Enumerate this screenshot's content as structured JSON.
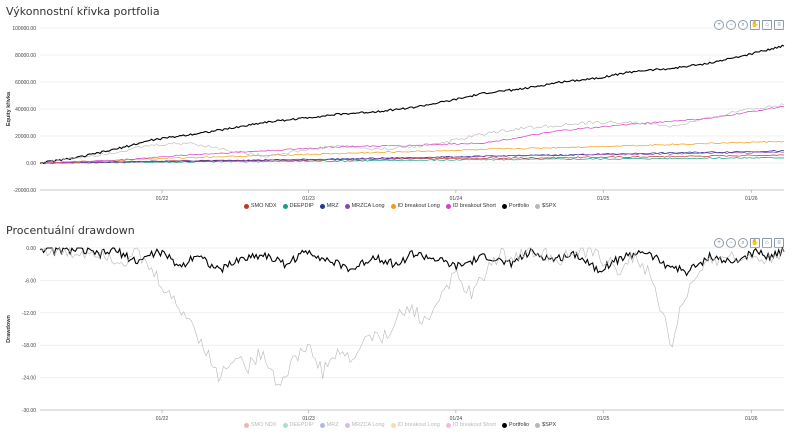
{
  "charts": [
    {
      "title": "Výkonnostní křivka portfolia",
      "toolbar": [
        "zoom-in-icon",
        "zoom-out-icon",
        "magnify-icon",
        "pan-icon",
        "home-icon",
        "menu-icon"
      ]
    },
    {
      "title": "Procentuální drawdown",
      "toolbar": [
        "zoom-in-icon",
        "zoom-out-icon",
        "magnify-icon",
        "pan-icon",
        "home-icon",
        "menu-icon"
      ]
    }
  ],
  "chart_data": [
    {
      "type": "line",
      "title": "Výkonnostní křivka portfolia",
      "ylabel": "Equity křivka",
      "xlabel": "",
      "ylim": [
        -20000,
        100000
      ],
      "y_ticks": [
        "100000.00",
        "80000.00",
        "60000.00",
        "40000.00",
        "20000.00",
        "0.00",
        "-20000.00"
      ],
      "y_tick_values": [
        100000,
        80000,
        60000,
        40000,
        20000,
        0,
        -20000
      ],
      "x_ticks": [
        "01/22",
        "01/23",
        "01/24",
        "01/25",
        "01/26"
      ],
      "x_tick_pos": [
        0.164,
        0.361,
        0.559,
        0.757,
        0.956
      ],
      "legend_position": "bottom",
      "grid": true,
      "series": [
        {
          "name": "SMO NDX",
          "color": "#c0392b",
          "points": [
            [
              0,
              0
            ],
            [
              0.2,
              1500
            ],
            [
              0.4,
              2500
            ],
            [
              0.6,
              3500
            ],
            [
              0.8,
              4500
            ],
            [
              1,
              6000
            ]
          ]
        },
        {
          "name": "DEEPDIP",
          "color": "#16a085",
          "points": [
            [
              0,
              0
            ],
            [
              0.2,
              800
            ],
            [
              0.4,
              1500
            ],
            [
              0.6,
              2500
            ],
            [
              0.8,
              3200
            ],
            [
              1,
              4000
            ]
          ]
        },
        {
          "name": "MRZ",
          "color": "#1f3a93",
          "points": [
            [
              0,
              0
            ],
            [
              0.2,
              1500
            ],
            [
              0.4,
              3000
            ],
            [
              0.6,
              5000
            ],
            [
              0.8,
              7000
            ],
            [
              1,
              9000
            ]
          ]
        },
        {
          "name": "MRZCA Long",
          "color": "#8e44ad",
          "points": [
            [
              0,
              0
            ],
            [
              0.2,
              1500
            ],
            [
              0.4,
              2500
            ],
            [
              0.6,
              5000
            ],
            [
              0.8,
              6500
            ],
            [
              1,
              8000
            ]
          ]
        },
        {
          "name": "ID breakout Long",
          "color": "#f39c12",
          "points": [
            [
              0,
              0
            ],
            [
              0.2,
              4000
            ],
            [
              0.4,
              7000
            ],
            [
              0.6,
              10000
            ],
            [
              0.8,
              13000
            ],
            [
              1,
              16000
            ]
          ]
        },
        {
          "name": "ID breakout Short",
          "color": "#d63fc8",
          "points": [
            [
              0,
              0
            ],
            [
              0.1,
              2000
            ],
            [
              0.2,
              6000
            ],
            [
              0.3,
              9000
            ],
            [
              0.4,
              12000
            ],
            [
              0.5,
              13000
            ],
            [
              0.6,
              15000
            ],
            [
              0.7,
              24000
            ],
            [
              0.8,
              29000
            ],
            [
              0.9,
              33000
            ],
            [
              1,
              42000
            ]
          ]
        },
        {
          "name": "Portfolio",
          "color": "#000000",
          "points": [
            [
              0,
              0
            ],
            [
              0.05,
              4000
            ],
            [
              0.1,
              10000
            ],
            [
              0.15,
              17000
            ],
            [
              0.2,
              21000
            ],
            [
              0.25,
              25000
            ],
            [
              0.3,
              30000
            ],
            [
              0.35,
              33000
            ],
            [
              0.4,
              36000
            ],
            [
              0.45,
              38000
            ],
            [
              0.5,
              41000
            ],
            [
              0.55,
              46000
            ],
            [
              0.6,
              52000
            ],
            [
              0.65,
              55000
            ],
            [
              0.7,
              60000
            ],
            [
              0.75,
              63000
            ],
            [
              0.8,
              68000
            ],
            [
              0.85,
              70000
            ],
            [
              0.9,
              74000
            ],
            [
              0.95,
              80000
            ],
            [
              1,
              87000
            ]
          ]
        },
        {
          "name": "$SPX",
          "color": "#b8b8b8",
          "points": [
            [
              0,
              0
            ],
            [
              0.1,
              8000
            ],
            [
              0.15,
              13000
            ],
            [
              0.2,
              15000
            ],
            [
              0.25,
              10000
            ],
            [
              0.3,
              5000
            ],
            [
              0.35,
              9000
            ],
            [
              0.4,
              13000
            ],
            [
              0.45,
              10000
            ],
            [
              0.5,
              12000
            ],
            [
              0.55,
              16000
            ],
            [
              0.6,
              22000
            ],
            [
              0.65,
              26000
            ],
            [
              0.7,
              28000
            ],
            [
              0.75,
              30000
            ],
            [
              0.8,
              30000
            ],
            [
              0.85,
              27000
            ],
            [
              0.9,
              33000
            ],
            [
              0.95,
              40000
            ],
            [
              1,
              43000
            ]
          ]
        }
      ]
    },
    {
      "type": "line",
      "title": "Procentuální drawdown",
      "ylabel": "Drawdown",
      "xlabel": "",
      "ylim": [
        -30,
        0
      ],
      "y_ticks": [
        "0.00",
        "-6.00",
        "-12.00",
        "-18.00",
        "-24.00",
        "-30.00"
      ],
      "y_tick_values": [
        0,
        -6,
        -12,
        -18,
        -24,
        -30
      ],
      "x_ticks": [
        "01/22",
        "01/23",
        "01/24",
        "01/25",
        "01/26"
      ],
      "x_tick_pos": [
        0.164,
        0.361,
        0.559,
        0.757,
        0.956
      ],
      "legend_position": "bottom",
      "grid": true,
      "series": [
        {
          "name": "SMO NDX",
          "color": "#c0392b",
          "visible": false
        },
        {
          "name": "DEEPDIP",
          "color": "#16a085",
          "visible": false
        },
        {
          "name": "MRZ",
          "color": "#1f3a93",
          "visible": false
        },
        {
          "name": "MRZCA Long",
          "color": "#8e44ad",
          "visible": false
        },
        {
          "name": "ID breakout Long",
          "color": "#f39c12",
          "visible": false
        },
        {
          "name": "ID breakout Short",
          "color": "#d63fc8",
          "visible": false
        },
        {
          "name": "Portfolio",
          "color": "#000000",
          "visible": true,
          "points": [
            [
              0,
              0
            ],
            [
              0.02,
              -0.5
            ],
            [
              0.05,
              -0.3
            ],
            [
              0.08,
              -1.2
            ],
            [
              0.1,
              -0.4
            ],
            [
              0.13,
              -2.5
            ],
            [
              0.16,
              -0.6
            ],
            [
              0.19,
              -3.5
            ],
            [
              0.21,
              -1.0
            ],
            [
              0.24,
              -4.2
            ],
            [
              0.27,
              -2.0
            ],
            [
              0.3,
              -1.2
            ],
            [
              0.33,
              -3.0
            ],
            [
              0.36,
              -0.5
            ],
            [
              0.39,
              -2.5
            ],
            [
              0.42,
              -4.0
            ],
            [
              0.45,
              -1.5
            ],
            [
              0.48,
              -3.2
            ],
            [
              0.5,
              -1.0
            ],
            [
              0.53,
              -2.0
            ],
            [
              0.56,
              -3.5
            ],
            [
              0.6,
              -1.5
            ],
            [
              0.63,
              -3.0
            ],
            [
              0.66,
              -0.8
            ],
            [
              0.69,
              -2.2
            ],
            [
              0.72,
              -1.0
            ],
            [
              0.75,
              -4.0
            ],
            [
              0.78,
              -2.0
            ],
            [
              0.81,
              -0.5
            ],
            [
              0.84,
              -3.0
            ],
            [
              0.87,
              -4.5
            ],
            [
              0.9,
              -1.5
            ],
            [
              0.93,
              -2.8
            ],
            [
              0.96,
              -0.8
            ],
            [
              0.98,
              -1.5
            ],
            [
              1,
              -0.3
            ]
          ]
        },
        {
          "name": "$SPX",
          "color": "#b8b8b8",
          "visible": true,
          "points": [
            [
              0,
              0
            ],
            [
              0.04,
              -1.0
            ],
            [
              0.08,
              -0.5
            ],
            [
              0.11,
              -2.5
            ],
            [
              0.13,
              -1.0
            ],
            [
              0.16,
              -6.0
            ],
            [
              0.18,
              -10.0
            ],
            [
              0.2,
              -13.0
            ],
            [
              0.22,
              -18.0
            ],
            [
              0.24,
              -24.0
            ],
            [
              0.26,
              -20.0
            ],
            [
              0.28,
              -22.0
            ],
            [
              0.3,
              -19.0
            ],
            [
              0.32,
              -25.5
            ],
            [
              0.34,
              -21.0
            ],
            [
              0.36,
              -18.0
            ],
            [
              0.38,
              -23.0
            ],
            [
              0.4,
              -19.0
            ],
            [
              0.42,
              -21.0
            ],
            [
              0.44,
              -16.0
            ],
            [
              0.46,
              -17.0
            ],
            [
              0.48,
              -13.0
            ],
            [
              0.5,
              -11.0
            ],
            [
              0.52,
              -14.0
            ],
            [
              0.54,
              -8.0
            ],
            [
              0.56,
              -5.0
            ],
            [
              0.58,
              -9.0
            ],
            [
              0.6,
              -4.0
            ],
            [
              0.62,
              -1.0
            ],
            [
              0.64,
              -1.5
            ],
            [
              0.66,
              -0.5
            ],
            [
              0.68,
              -1.0
            ],
            [
              0.7,
              -2.0
            ],
            [
              0.72,
              -1.0
            ],
            [
              0.74,
              -0.5
            ],
            [
              0.76,
              -2.5
            ],
            [
              0.78,
              -4.0
            ],
            [
              0.8,
              -1.5
            ],
            [
              0.82,
              -5.0
            ],
            [
              0.83,
              -10.0
            ],
            [
              0.84,
              -13.0
            ],
            [
              0.85,
              -19.0
            ],
            [
              0.86,
              -11.0
            ],
            [
              0.88,
              -6.0
            ],
            [
              0.9,
              -3.0
            ],
            [
              0.92,
              -1.0
            ],
            [
              0.94,
              -2.5
            ],
            [
              0.96,
              -1.0
            ],
            [
              0.98,
              -2.0
            ],
            [
              1,
              -0.5
            ]
          ]
        }
      ]
    }
  ]
}
